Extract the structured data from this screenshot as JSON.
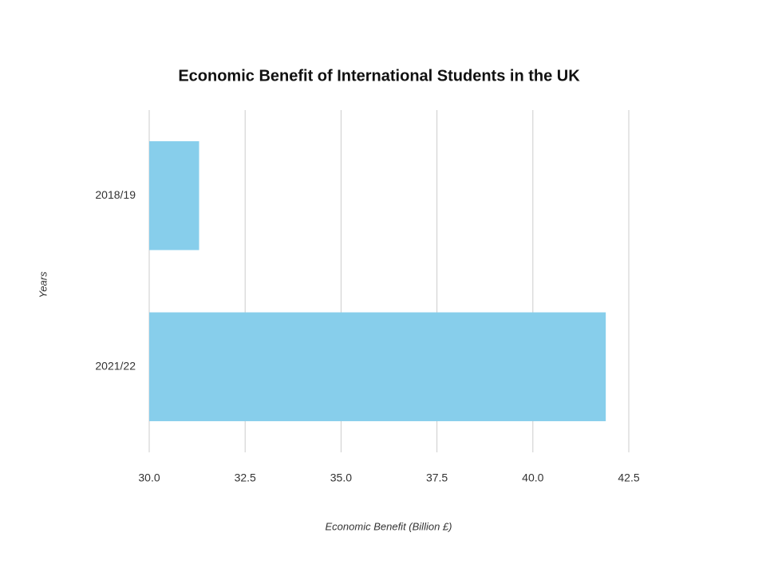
{
  "chart_data": {
    "type": "bar",
    "orientation": "horizontal",
    "title": "Economic Benefit of International Students in the UK",
    "x_label": "Economic Benefit (Billion £)",
    "y_label": "Years",
    "categories": [
      "2018/19",
      "2021/22"
    ],
    "values": [
      31.3,
      41.9
    ],
    "color": "#87ceeb",
    "xlim": [
      30,
      42.5
    ],
    "xticks": [
      {
        "value": 30,
        "label": "30.0"
      },
      32.5,
      {
        "value": 35,
        "label": "35.0"
      },
      37.5,
      {
        "value": 40,
        "label": "40.0"
      },
      42.5
    ],
    "grid": true
  }
}
